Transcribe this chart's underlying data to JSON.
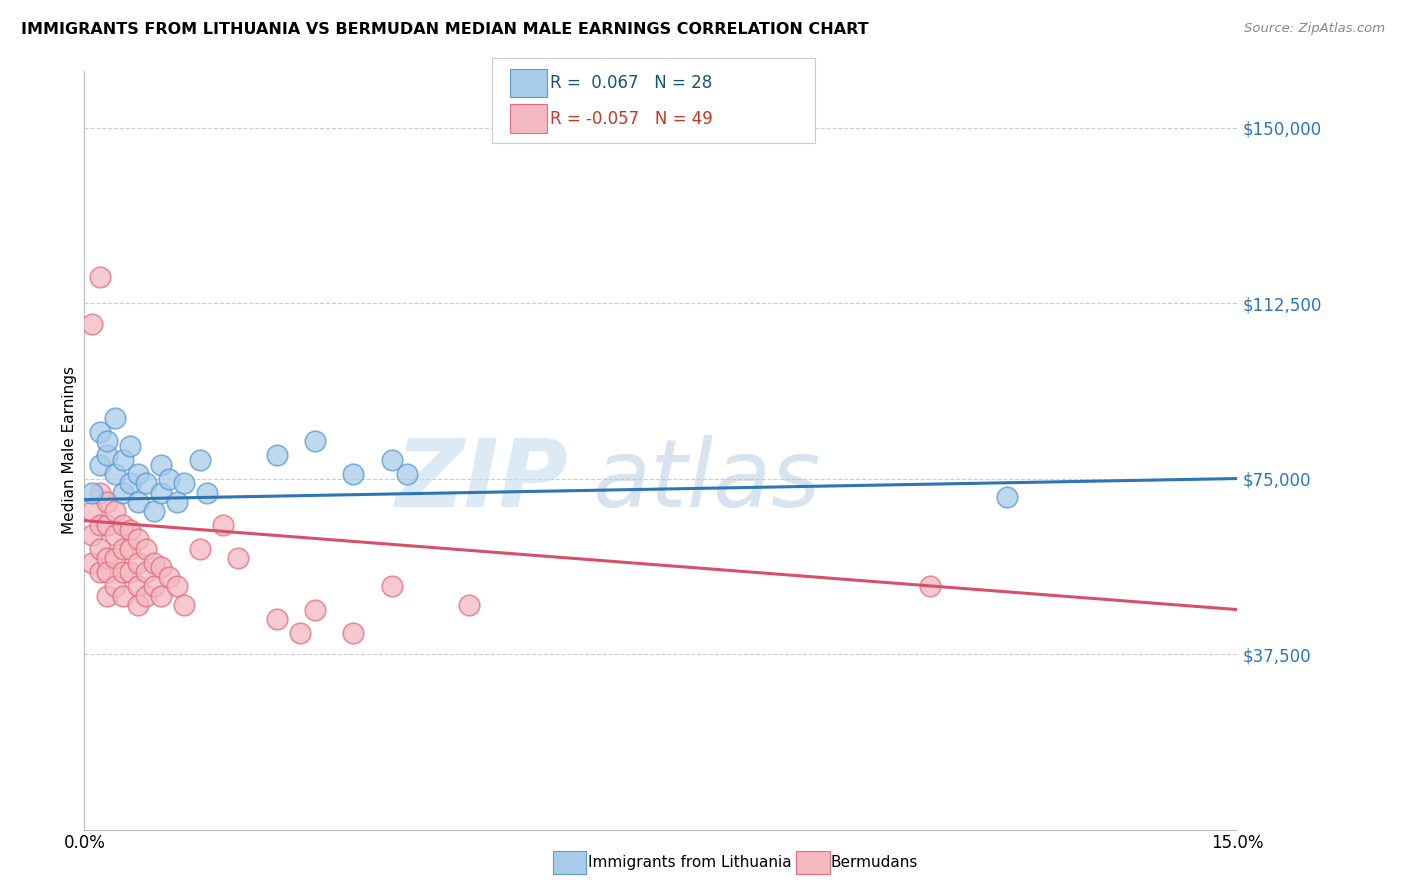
{
  "title": "IMMIGRANTS FROM LITHUANIA VS BERMUDAN MEDIAN MALE EARNINGS CORRELATION CHART",
  "source": "Source: ZipAtlas.com",
  "ylabel": "Median Male Earnings",
  "y_ticks": [
    0,
    37500,
    75000,
    112500,
    150000
  ],
  "y_tick_labels": [
    "",
    "$37,500",
    "$75,000",
    "$112,500",
    "$150,000"
  ],
  "x_min": 0.0,
  "x_max": 0.15,
  "y_min": 0,
  "y_max": 162000,
  "watermark_zip": "ZIP",
  "watermark_atlas": "atlas",
  "blue_color": "#a8cce8",
  "blue_edge_color": "#5b9bd5",
  "blue_line_color": "#2e75b6",
  "pink_color": "#f4b8c1",
  "pink_edge_color": "#e07080",
  "pink_line_color": "#d94f6a",
  "blue_scatter_x": [
    0.001,
    0.002,
    0.002,
    0.003,
    0.003,
    0.004,
    0.004,
    0.005,
    0.005,
    0.006,
    0.006,
    0.007,
    0.007,
    0.008,
    0.009,
    0.01,
    0.01,
    0.011,
    0.012,
    0.013,
    0.015,
    0.016,
    0.025,
    0.03,
    0.035,
    0.04,
    0.042,
    0.12
  ],
  "blue_scatter_y": [
    72000,
    85000,
    78000,
    80000,
    83000,
    76000,
    88000,
    72000,
    79000,
    74000,
    82000,
    70000,
    76000,
    74000,
    68000,
    78000,
    72000,
    75000,
    70000,
    74000,
    79000,
    72000,
    80000,
    83000,
    76000,
    79000,
    76000,
    71000
  ],
  "pink_scatter_x": [
    0.001,
    0.001,
    0.001,
    0.002,
    0.002,
    0.002,
    0.002,
    0.003,
    0.003,
    0.003,
    0.003,
    0.003,
    0.004,
    0.004,
    0.004,
    0.004,
    0.005,
    0.005,
    0.005,
    0.005,
    0.006,
    0.006,
    0.006,
    0.007,
    0.007,
    0.007,
    0.007,
    0.008,
    0.008,
    0.008,
    0.009,
    0.009,
    0.01,
    0.01,
    0.011,
    0.012,
    0.013,
    0.015,
    0.018,
    0.02,
    0.025,
    0.028,
    0.03,
    0.035,
    0.04,
    0.05,
    0.002,
    0.001,
    0.11
  ],
  "pink_scatter_y": [
    68000,
    63000,
    57000,
    72000,
    65000,
    60000,
    55000,
    70000,
    65000,
    58000,
    55000,
    50000,
    68000,
    63000,
    58000,
    52000,
    65000,
    60000,
    55000,
    50000,
    64000,
    60000,
    55000,
    62000,
    57000,
    52000,
    48000,
    60000,
    55000,
    50000,
    57000,
    52000,
    56000,
    50000,
    54000,
    52000,
    48000,
    60000,
    65000,
    58000,
    45000,
    42000,
    47000,
    42000,
    52000,
    48000,
    118000,
    108000,
    52000
  ],
  "blue_line_x0": 0.0,
  "blue_line_y0": 70500,
  "blue_line_x1": 0.15,
  "blue_line_y1": 75000,
  "pink_line_x0": 0.0,
  "pink_line_y0": 66000,
  "pink_line_x1": 0.15,
  "pink_line_y1": 47000
}
